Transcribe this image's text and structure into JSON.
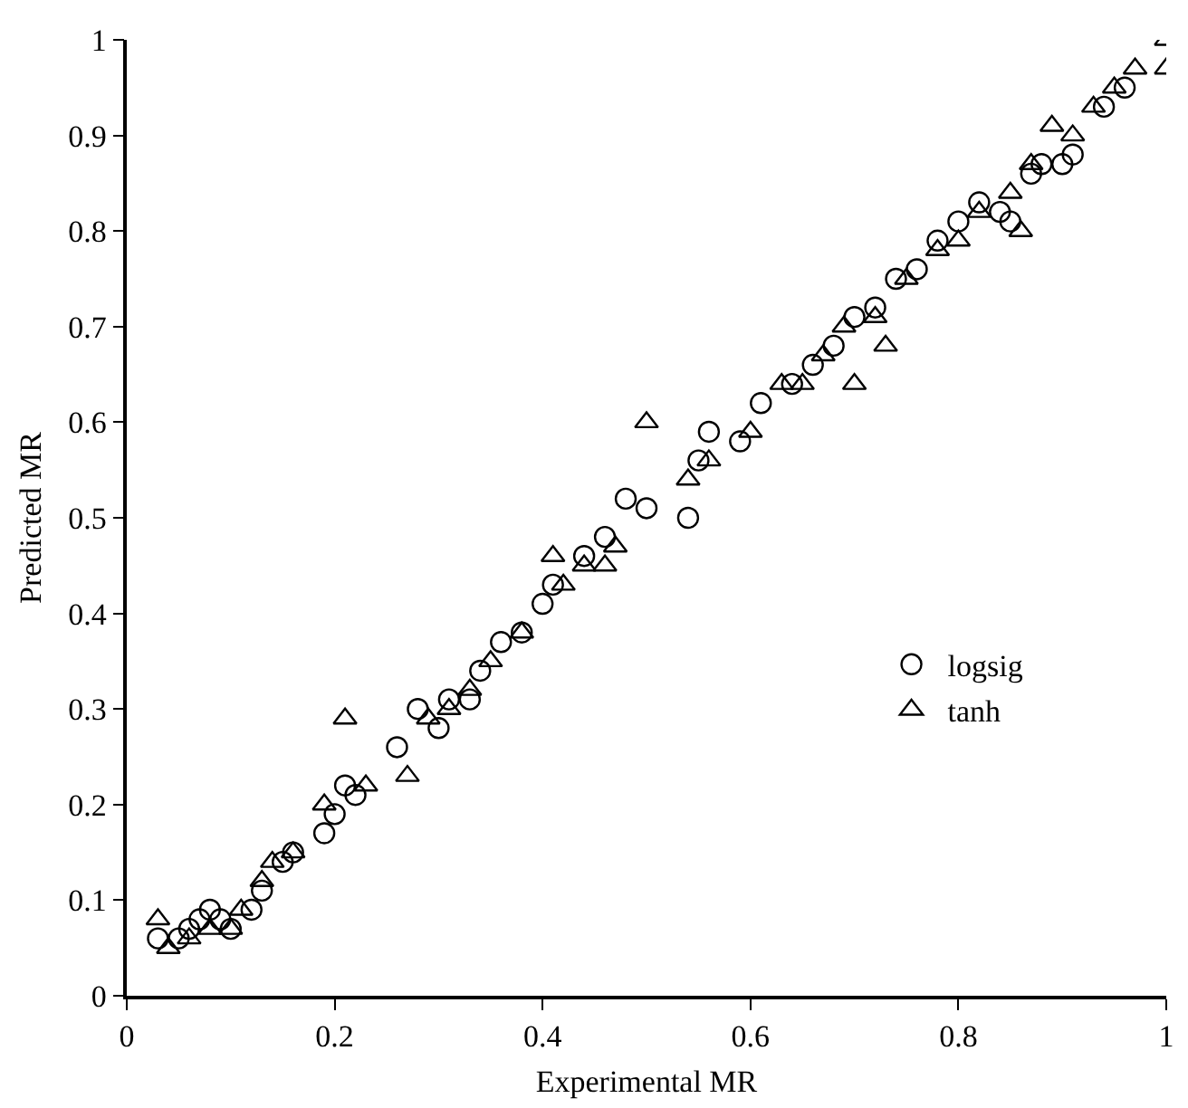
{
  "chart_data": {
    "type": "scatter",
    "xlabel": "Experimental MR",
    "ylabel": "Predicted MR",
    "xlim": [
      0,
      1
    ],
    "ylim": [
      0,
      1
    ],
    "xticks": [
      0,
      0.2,
      0.4,
      0.6,
      0.8,
      1
    ],
    "yticks": [
      0,
      0.1,
      0.2,
      0.3,
      0.4,
      0.5,
      0.6,
      0.7,
      0.8,
      0.9,
      1
    ],
    "grid": false,
    "legend": "right",
    "series": [
      {
        "name": "logsig",
        "color": "#000000",
        "marker": "circle",
        "x": [
          0.03,
          0.05,
          0.06,
          0.07,
          0.08,
          0.09,
          0.1,
          0.12,
          0.13,
          0.15,
          0.16,
          0.19,
          0.2,
          0.21,
          0.22,
          0.26,
          0.28,
          0.3,
          0.31,
          0.33,
          0.34,
          0.36,
          0.38,
          0.4,
          0.41,
          0.44,
          0.46,
          0.48,
          0.5,
          0.54,
          0.55,
          0.56,
          0.59,
          0.61,
          0.64,
          0.66,
          0.68,
          0.7,
          0.72,
          0.74,
          0.76,
          0.78,
          0.8,
          0.82,
          0.84,
          0.85,
          0.87,
          0.88,
          0.9,
          0.91,
          0.94,
          0.96
        ],
        "values": [
          0.06,
          0.06,
          0.07,
          0.08,
          0.09,
          0.08,
          0.07,
          0.09,
          0.11,
          0.14,
          0.15,
          0.17,
          0.19,
          0.22,
          0.21,
          0.26,
          0.3,
          0.28,
          0.31,
          0.31,
          0.34,
          0.37,
          0.38,
          0.41,
          0.43,
          0.46,
          0.48,
          0.52,
          0.51,
          0.5,
          0.56,
          0.59,
          0.58,
          0.62,
          0.64,
          0.66,
          0.68,
          0.71,
          0.72,
          0.75,
          0.76,
          0.79,
          0.81,
          0.83,
          0.82,
          0.81,
          0.86,
          0.87,
          0.87,
          0.88,
          0.93,
          0.95
        ]
      },
      {
        "name": "tanh",
        "color": "#000000",
        "marker": "triangle",
        "x": [
          0.03,
          0.04,
          0.06,
          0.08,
          0.1,
          0.11,
          0.13,
          0.14,
          0.16,
          0.19,
          0.21,
          0.23,
          0.27,
          0.29,
          0.31,
          0.33,
          0.35,
          0.38,
          0.41,
          0.42,
          0.44,
          0.46,
          0.47,
          0.5,
          0.54,
          0.56,
          0.6,
          0.63,
          0.65,
          0.67,
          0.69,
          0.7,
          0.72,
          0.73,
          0.75,
          0.78,
          0.8,
          0.82,
          0.85,
          0.86,
          0.87,
          0.89,
          0.91,
          0.93,
          0.95,
          0.97,
          1,
          1
        ],
        "values": [
          0.08,
          0.05,
          0.06,
          0.07,
          0.07,
          0.09,
          0.12,
          0.14,
          0.15,
          0.2,
          0.29,
          0.22,
          0.23,
          0.29,
          0.3,
          0.32,
          0.35,
          0.38,
          0.46,
          0.43,
          0.45,
          0.45,
          0.47,
          0.6,
          0.54,
          0.56,
          0.59,
          0.64,
          0.64,
          0.67,
          0.7,
          0.64,
          0.71,
          0.68,
          0.75,
          0.78,
          0.79,
          0.82,
          0.84,
          0.8,
          0.87,
          0.91,
          0.9,
          0.93,
          0.95,
          0.97,
          1,
          0.97
        ]
      }
    ]
  }
}
